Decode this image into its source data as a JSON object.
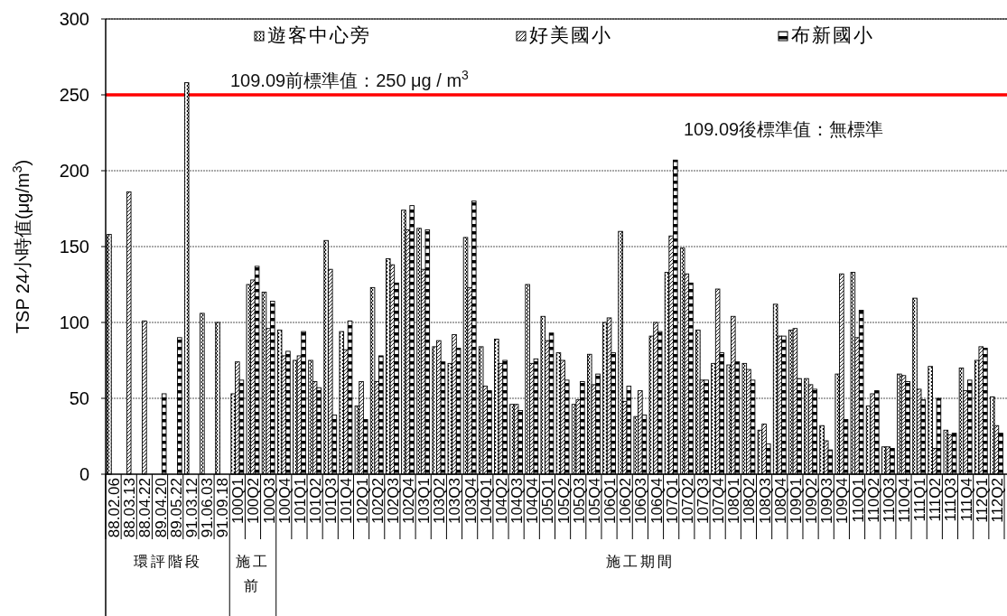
{
  "chart_data": {
    "type": "bar",
    "ylabel": "TSP 24小時值(μg/m$^{3}$)",
    "categories": [
      "88.02.06",
      "88.03.13",
      "88.04.22",
      "89.04.20",
      "89.05.22",
      "91.03.12",
      "91.06.03",
      "91.09.18",
      "100Q1",
      "100Q2",
      "100Q3",
      "100Q4",
      "101Q1",
      "101Q2",
      "101Q3",
      "101Q4",
      "102Q1",
      "102Q2",
      "102Q3",
      "102Q4",
      "103Q1",
      "103Q2",
      "103Q3",
      "103Q4",
      "104Q1",
      "104Q2",
      "104Q3",
      "104Q4",
      "105Q1",
      "105Q2",
      "105Q3",
      "105Q4",
      "106Q1",
      "106Q2",
      "106Q3",
      "106Q4",
      "107Q1",
      "107Q2",
      "107Q3",
      "107Q4",
      "108Q1",
      "108Q2",
      "108Q3",
      "108Q4",
      "109Q1",
      "109Q2",
      "109Q3",
      "109Q4",
      "110Q1",
      "110Q2",
      "110Q3",
      "110Q4",
      "111Q1",
      "111Q2",
      "111Q3",
      "111Q4",
      "112Q1",
      "112Q2"
    ],
    "series": [
      {
        "name": "遊客中心旁",
        "color": "#000000",
        "values": [
          158,
          null,
          null,
          null,
          null,
          258,
          106,
          100,
          53,
          125,
          120,
          95,
          75,
          75,
          154,
          94,
          45,
          123,
          142,
          174,
          162,
          84,
          73,
          156,
          84,
          89,
          46,
          125,
          104,
          80,
          46,
          79,
          100,
          160,
          38,
          91,
          133,
          149,
          95,
          73,
          72,
          73,
          29,
          112,
          95,
          63,
          32,
          66,
          133,
          45,
          18,
          66,
          116,
          71,
          29,
          70,
          75,
          51
        ]
      },
      {
        "name": "好美國小",
        "color": "#000000",
        "values": [
          null,
          186,
          101,
          null,
          null,
          null,
          null,
          null,
          74,
          128,
          96,
          78,
          78,
          61,
          135,
          82,
          61,
          61,
          138,
          161,
          135,
          88,
          92,
          123,
          58,
          73,
          46,
          73,
          88,
          75,
          49,
          59,
          103,
          48,
          55,
          100,
          157,
          132,
          62,
          122,
          104,
          69,
          33,
          91,
          96,
          59,
          22,
          132,
          90,
          53,
          18,
          65,
          56,
          17,
          26,
          55,
          84,
          32
        ]
      },
      {
        "name": "布新國小",
        "color": "#000000",
        "values": [
          null,
          null,
          null,
          53,
          90,
          null,
          null,
          null,
          62,
          137,
          114,
          81,
          94,
          57,
          39,
          101,
          36,
          78,
          126,
          177,
          161,
          74,
          83,
          180,
          55,
          75,
          42,
          76,
          93,
          62,
          61,
          66,
          80,
          58,
          39,
          94,
          207,
          126,
          62,
          80,
          74,
          62,
          20,
          91,
          63,
          56,
          16,
          36,
          108,
          55,
          17,
          61,
          49,
          50,
          27,
          62,
          83,
          27
        ]
      }
    ],
    "ylim": [
      0,
      300
    ],
    "yticks": [
      0,
      50,
      100,
      150,
      200,
      250,
      300
    ],
    "grid": "y",
    "legend": "top",
    "ref_lines": [
      {
        "axis": "y",
        "value": 250,
        "label": "109.09前標準值：250 μg / m$^{3}$",
        "color": "#ff0000"
      }
    ],
    "annotations": [
      "109.09後標準值：無標準",
      "環評階段",
      "施工前",
      "施工期間"
    ]
  }
}
